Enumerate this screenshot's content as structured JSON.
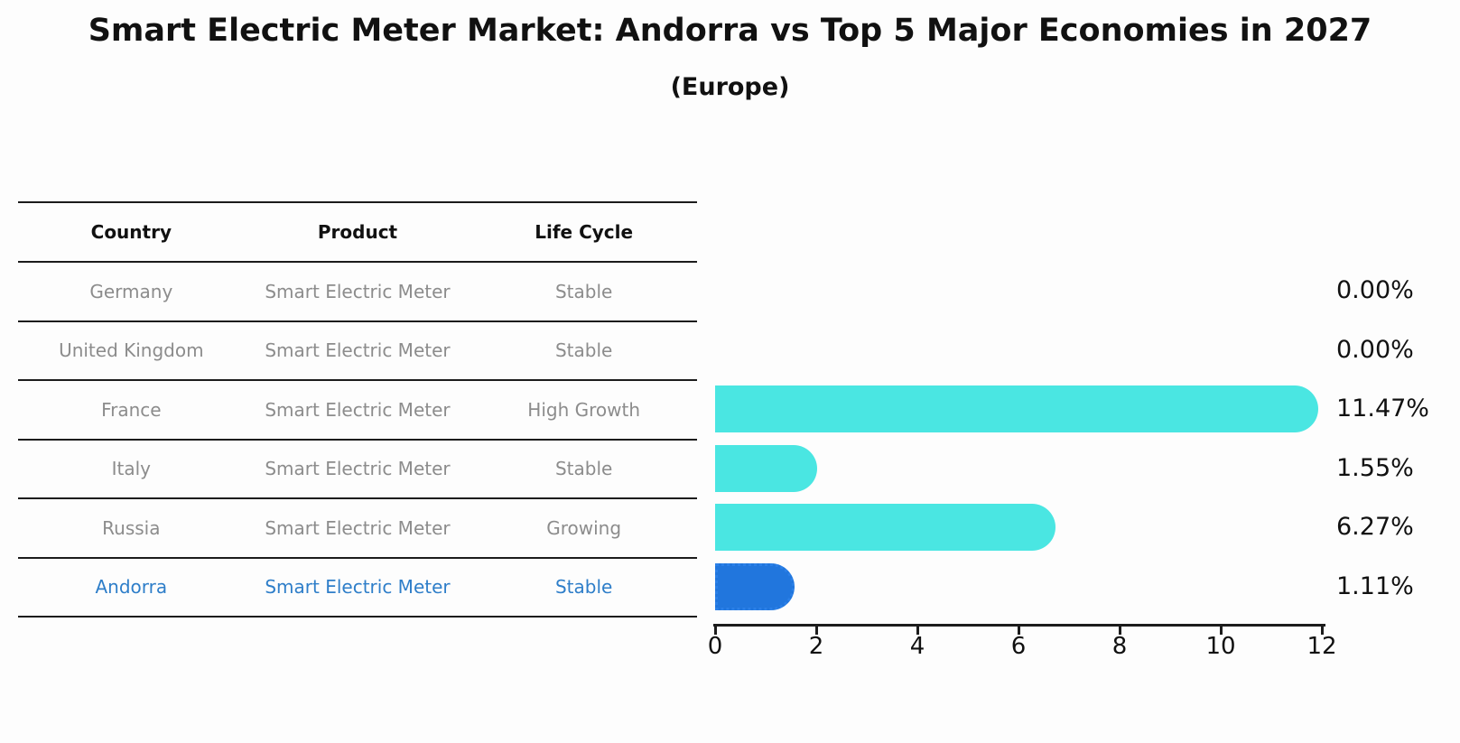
{
  "title": "Smart Electric Meter Market: Andorra vs Top 5 Major Economies in 2027",
  "subtitle": "(Europe)",
  "table": {
    "headers": [
      "Country",
      "Product",
      "Life Cycle"
    ],
    "rows": [
      {
        "country": "Germany",
        "product": "Smart Electric Meter",
        "life_cycle": "Stable",
        "highlight": false
      },
      {
        "country": "United Kingdom",
        "product": "Smart Electric Meter",
        "life_cycle": "Stable",
        "highlight": false
      },
      {
        "country": "France",
        "product": "Smart Electric Meter",
        "life_cycle": "High Growth",
        "highlight": false
      },
      {
        "country": "Italy",
        "product": "Smart Electric Meter",
        "life_cycle": "Stable",
        "highlight": false
      },
      {
        "country": "Russia",
        "product": "Smart Electric Meter",
        "life_cycle": "Growing",
        "highlight": false
      },
      {
        "country": "Andorra",
        "product": "Smart Electric Meter",
        "life_cycle": "Stable",
        "highlight": true
      }
    ]
  },
  "chart_data": {
    "type": "bar",
    "orientation": "horizontal",
    "title": "Smart Electric Meter Market: Andorra vs Top 5 Major Economies in 2027 (Europe)",
    "categories": [
      "Germany",
      "United Kingdom",
      "France",
      "Italy",
      "Russia",
      "Andorra"
    ],
    "values": [
      0.0,
      0.0,
      11.47,
      1.55,
      6.27,
      1.11
    ],
    "value_labels": [
      "0.00%",
      "0.00%",
      "11.47%",
      "1.55%",
      "6.27%",
      "1.11%"
    ],
    "xlabel": "",
    "ylabel": "",
    "xlim": [
      0,
      12
    ],
    "xticks": [
      0,
      2,
      4,
      6,
      8,
      10,
      12
    ],
    "grid": false,
    "legend": null,
    "highlight_index": 5
  },
  "colors": {
    "bar": "#4ae6e2",
    "highlight_bar": "#2176dd",
    "highlight_bar_edge": "#2b80e8",
    "highlight_text": "#2e7ec9",
    "text": "#111111",
    "muted_text": "#8c8c8c",
    "line": "#1c1c1c",
    "background": "#fdfdfd"
  }
}
